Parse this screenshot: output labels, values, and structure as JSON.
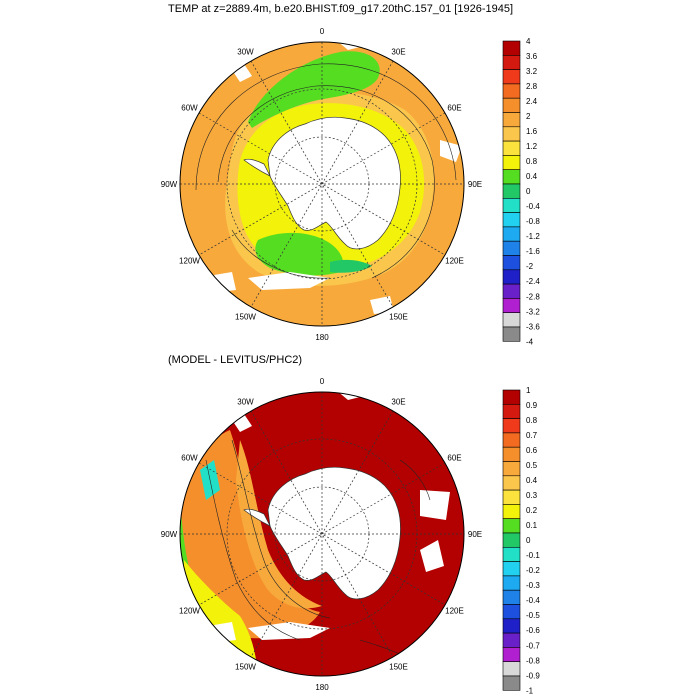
{
  "top_panel": {
    "title": "TEMP at z=2889.4m, b.e20.BHIST.f09_g17.20thC.157_01 [1926-1945]",
    "longitude_labels": [
      "0",
      "30E",
      "60E",
      "90E",
      "120E",
      "150E",
      "180",
      "150W",
      "120W",
      "90W",
      "60W",
      "30W"
    ],
    "colorbar": {
      "labels": [
        "4",
        "3.6",
        "3.2",
        "2.8",
        "2.4",
        "2",
        "1.6",
        "1.2",
        "0.8",
        "0.4",
        "0",
        "-0.4",
        "-0.8",
        "-1.2",
        "-1.6",
        "-2",
        "-2.4",
        "-2.8",
        "-3.2",
        "-3.6",
        "-4"
      ],
      "colors": [
        "#b30000",
        "#d41a10",
        "#f03a1c",
        "#f36b20",
        "#f58f2c",
        "#f7a93c",
        "#fbc64c",
        "#fbe23c",
        "#f2f20a",
        "#55dd22",
        "#22c866",
        "#22e0c8",
        "#22d0f0",
        "#1eaaf0",
        "#1e82e8",
        "#1e50e0",
        "#2020c8",
        "#6a20c8",
        "#b020d0",
        "#d8d8d8",
        "#8a8a8a"
      ]
    }
  },
  "bottom_panel": {
    "title": "(MODEL - LEVITUS/PHC2)",
    "longitude_labels": [
      "0",
      "30E",
      "60E",
      "90E",
      "120E",
      "150E",
      "180",
      "150W",
      "120W",
      "90W",
      "60W",
      "30W"
    ],
    "colorbar": {
      "labels": [
        "1",
        "0.9",
        "0.8",
        "0.7",
        "0.6",
        "0.5",
        "0.4",
        "0.3",
        "0.2",
        "0.1",
        "0",
        "-0.1",
        "-0.2",
        "-0.3",
        "-0.4",
        "-0.5",
        "-0.6",
        "-0.7",
        "-0.8",
        "-0.9",
        "-1"
      ],
      "colors": [
        "#b30000",
        "#d41a10",
        "#f03a1c",
        "#f36b20",
        "#f58f2c",
        "#f7a93c",
        "#fbc64c",
        "#fbe23c",
        "#f2f20a",
        "#55dd22",
        "#22c866",
        "#22e0c8",
        "#22d0f0",
        "#1eaaf0",
        "#1e82e8",
        "#1e50e0",
        "#2020c8",
        "#6a20c8",
        "#b020d0",
        "#d8d8d8",
        "#8a8a8a"
      ]
    }
  }
}
